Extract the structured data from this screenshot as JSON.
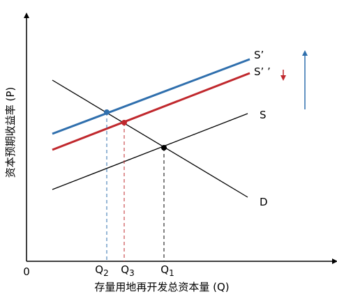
{
  "diagram": {
    "y_axis_label": "资本预期收益率 (P)",
    "x_axis_label": "存量用地再开发总资本量 (Q)",
    "origin": "0",
    "curves": {
      "s_prime": "S’",
      "s_double_prime": "S’ ’",
      "s": "S",
      "d": "D"
    },
    "quantities": [
      {
        "label": "Q",
        "sub": "2"
      },
      {
        "label": "Q",
        "sub": "3"
      },
      {
        "label": "Q",
        "sub": "1"
      }
    ]
  }
}
